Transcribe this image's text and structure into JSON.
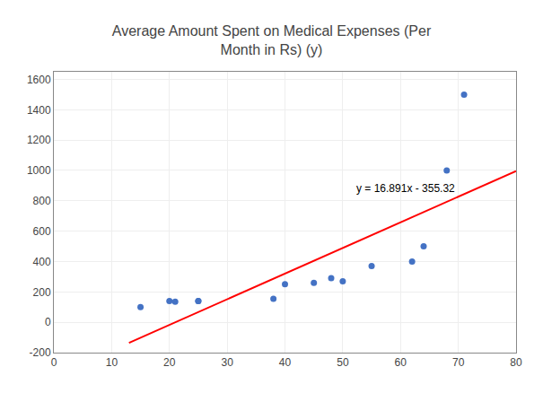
{
  "chart_data": {
    "type": "scatter",
    "title": "Average Amount Spent on Medical Expenses (Per\nMonth in Rs) (y)",
    "series": [
      {
        "type": "scatter",
        "marker": "circle",
        "color": "#4472C4",
        "x": [
          15,
          20,
          21,
          25,
          25,
          38,
          40,
          45,
          48,
          50,
          55,
          62,
          64,
          68,
          71
        ],
        "values": [
          100,
          140,
          135,
          140,
          140,
          155,
          250,
          260,
          290,
          270,
          370,
          400,
          500,
          1000,
          1500
        ]
      },
      {
        "type": "line",
        "line_style": "solid",
        "color": "#FF0000",
        "x": [
          13,
          80
        ],
        "values": [
          -135.737,
          995.96
        ]
      }
    ],
    "annotations": [
      {
        "text": "y = 16.891x - 355.32",
        "x": 52,
        "y": 830
      }
    ],
    "xlim": [
      0,
      80
    ],
    "ylim": [
      -200,
      1650
    ],
    "xticks": [
      0,
      10,
      20,
      30,
      40,
      50,
      60,
      70,
      80
    ],
    "yticks": [
      -200,
      0,
      200,
      400,
      600,
      800,
      1000,
      1200,
      1400,
      1600
    ],
    "grid": true
  }
}
